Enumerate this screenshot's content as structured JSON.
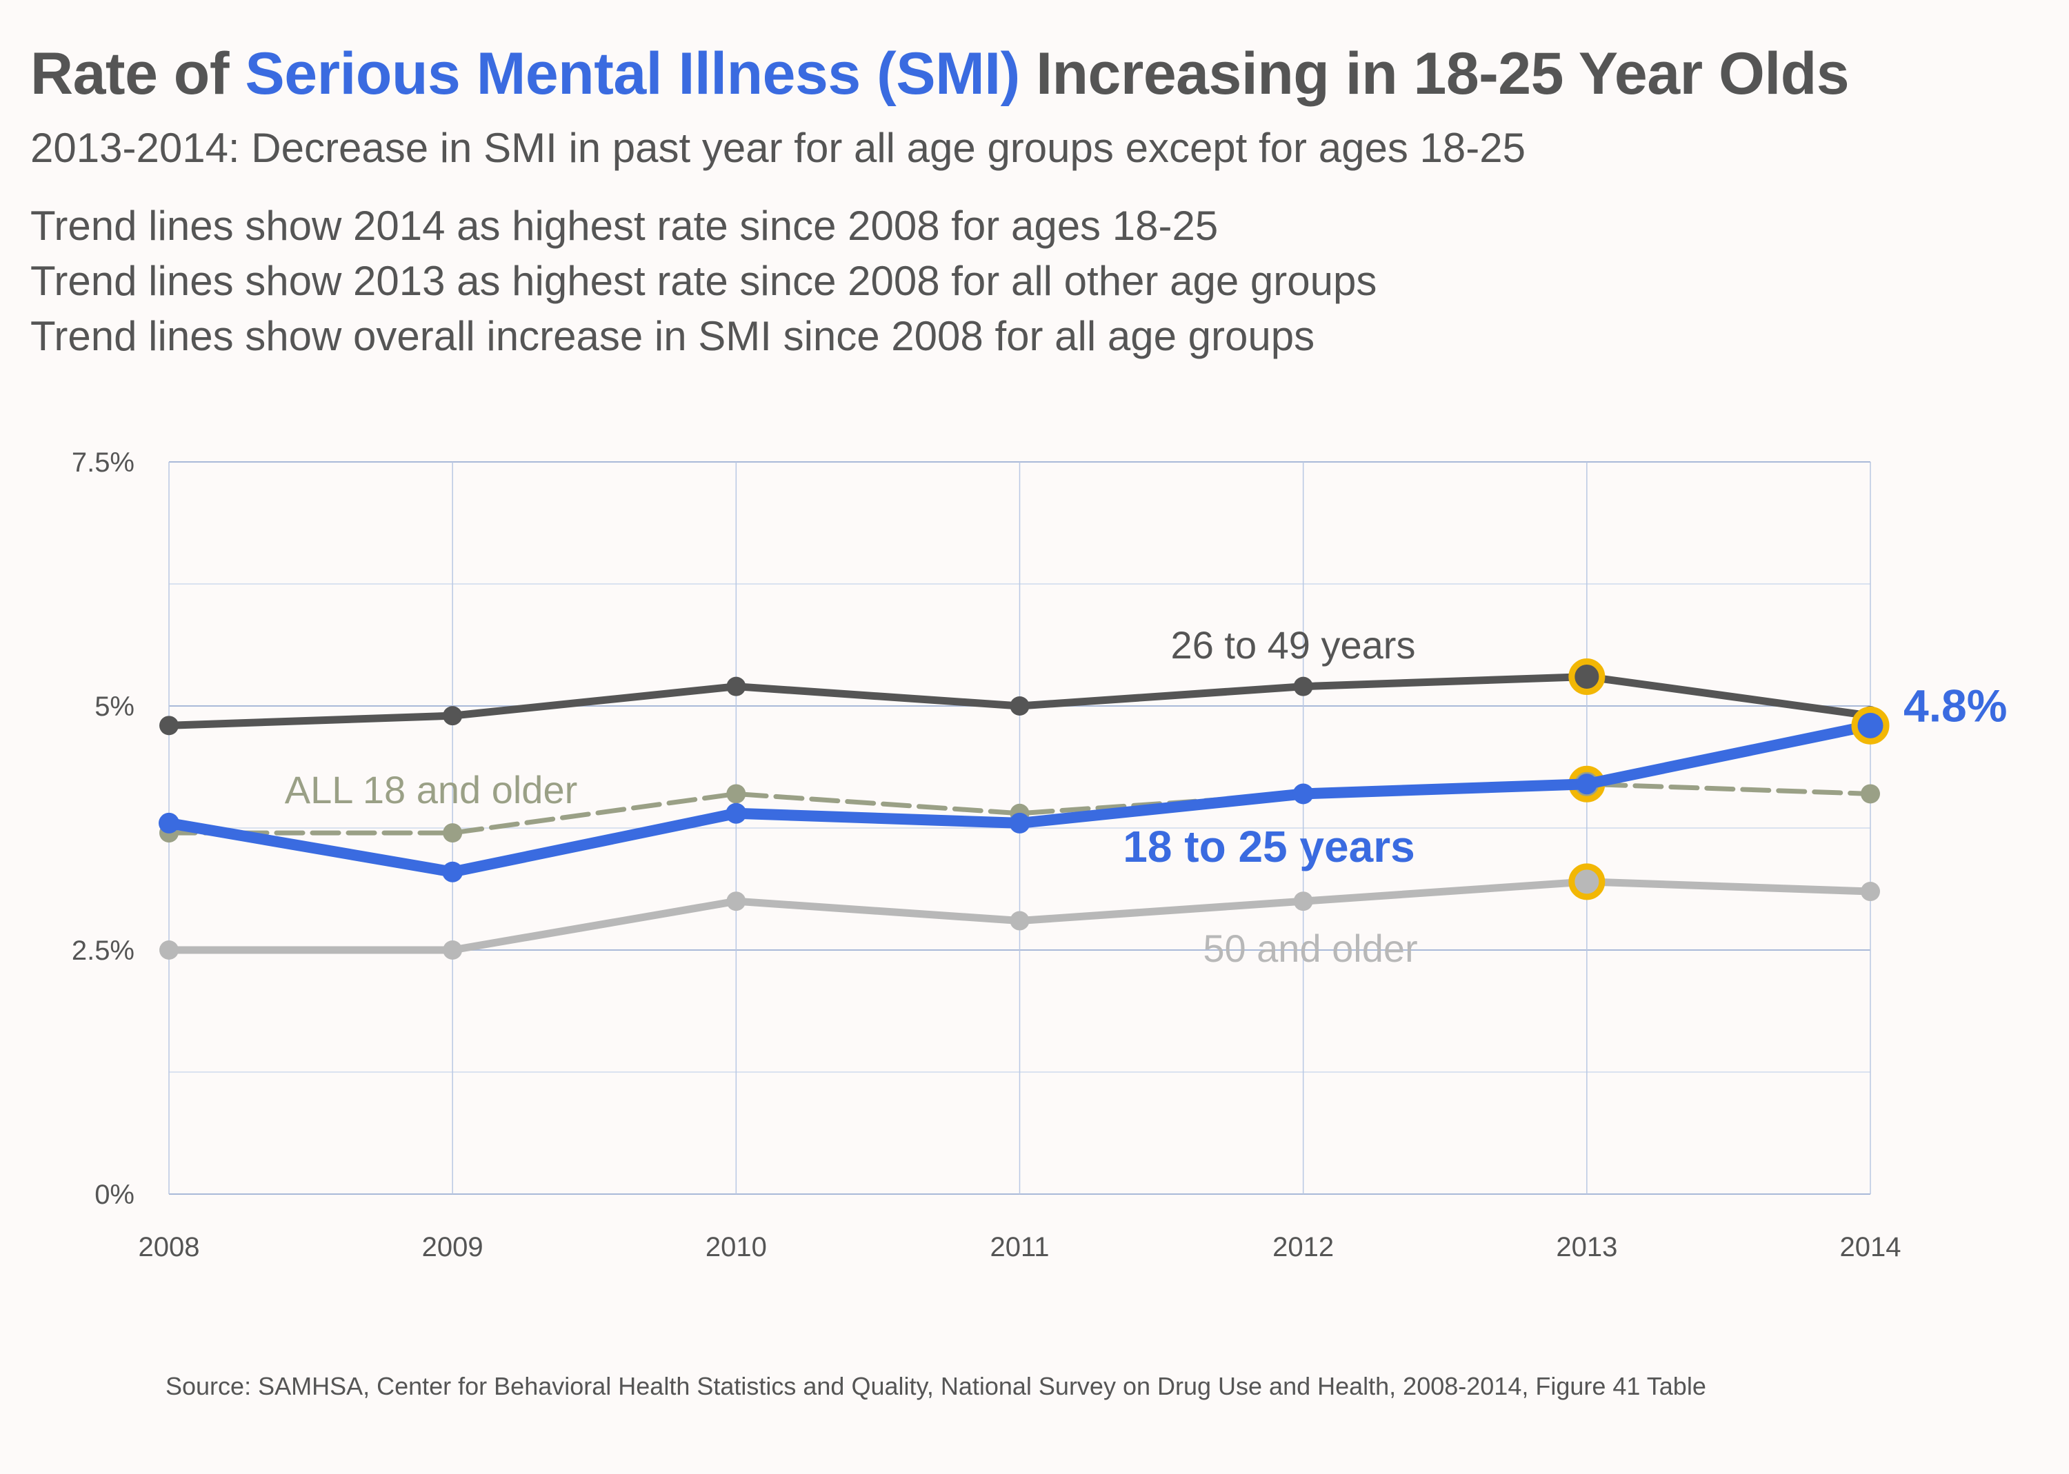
{
  "header": {
    "title_prefix": "Rate of ",
    "title_highlight": "Serious Mental Illness (SMI)",
    "title_suffix": " Increasing in 18-25 Year Olds",
    "subtitle": "2013-2014: Decrease in SMI in past year for all age groups except for ages 18-25",
    "notes": [
      "Trend lines show 2014 as highest rate since 2008 for ages 18-25",
      "Trend lines show 2013 as highest rate since 2008 for all other age groups",
      "Trend lines show overall increase in SMI since 2008 for all age groups"
    ]
  },
  "source": "Source: SAMHSA, Center for Behavioral Health Statistics and Quality, National Survey on Drug Use and Health, 2008-2014,  Figure 41 Table",
  "colors": {
    "highlight": "#3a6be0",
    "age_26_49": "#555555",
    "all_18_older": "#9aa086",
    "age_50_older": "#b8b8b8",
    "marker_highlight": "#f2b705",
    "grid": "#b9c8e3"
  },
  "chart_data": {
    "type": "line",
    "x": [
      2008,
      2009,
      2010,
      2011,
      2012,
      2013,
      2014
    ],
    "ylim": [
      0,
      7.5
    ],
    "yticks": [
      "0%",
      "2.5%",
      "5%",
      "7.5%"
    ],
    "ytick_values": [
      0,
      2.5,
      5,
      7.5
    ],
    "grid": true,
    "series": [
      {
        "name": "26 to 49 years",
        "values": [
          4.8,
          4.9,
          5.2,
          5.0,
          5.2,
          5.3,
          4.9
        ],
        "style": "solid",
        "highlight_points": [
          2013
        ]
      },
      {
        "name": "ALL 18 and older",
        "values": [
          3.7,
          3.7,
          4.1,
          3.9,
          4.1,
          4.2,
          4.1
        ],
        "style": "dashed",
        "highlight_points": [
          2013
        ]
      },
      {
        "name": "18 to 25 years",
        "values": [
          3.8,
          3.3,
          3.9,
          3.8,
          4.1,
          4.2,
          4.8
        ],
        "style": "solid",
        "highlight_points": [
          2014
        ]
      },
      {
        "name": "50 and older",
        "values": [
          2.5,
          2.5,
          3.0,
          2.8,
          3.0,
          3.2,
          3.1
        ],
        "style": "solid",
        "highlight_points": [
          2013
        ]
      }
    ],
    "annotations": [
      {
        "text": "4.8%",
        "series": "18 to 25 years",
        "x": 2014
      }
    ]
  }
}
